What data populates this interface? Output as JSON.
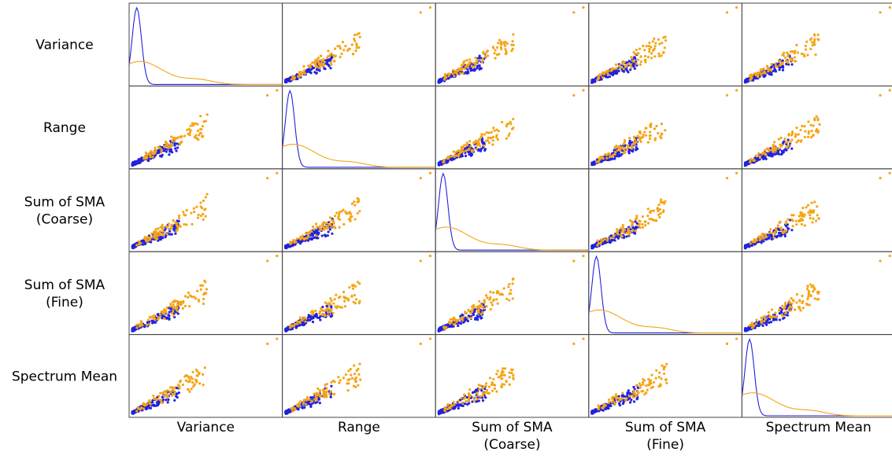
{
  "chart_data": {
    "type": "scatter",
    "subtype": "scatter-matrix",
    "title": "",
    "variables": [
      "Variance",
      "Range",
      "Sum of SMA\n(Coarse)",
      "Sum of SMA\n(Fine)",
      "Spectrum Mean"
    ],
    "diagonal": "kde",
    "ticks_visible": false,
    "grid": false,
    "legend": "none",
    "colors": {
      "group_a": "#2222dd",
      "group_b": "#f5a516",
      "frame": "#444444"
    },
    "groups": [
      {
        "key": "group_a",
        "color": "#2222dd",
        "n_points": 140,
        "spread": "compact, clustered near origin"
      },
      {
        "key": "group_b",
        "color": "#f5a516",
        "n_points": 90,
        "spread": "wide, extending to upper range with outliers"
      }
    ],
    "diagonal_curves": {
      "group_a": {
        "peak_position": 0.05,
        "peak_height": 1.0,
        "width": 0.03
      },
      "group_b": {
        "peak_position": 0.07,
        "peak_height": 0.3,
        "width": 0.15
      }
    }
  }
}
